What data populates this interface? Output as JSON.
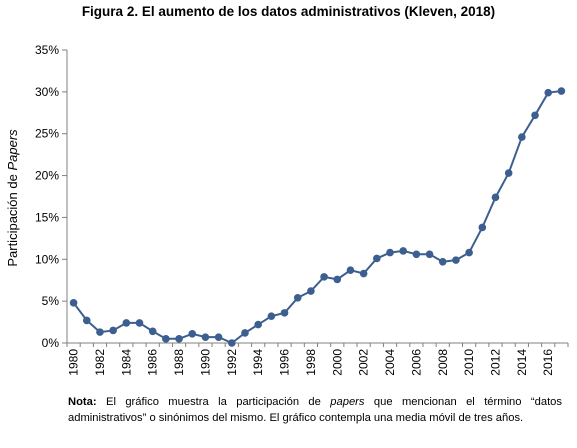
{
  "figure": {
    "title": "Figura 2. El aumento de los datos administrativos (Kleven, 2018)",
    "note_label": "Nota:",
    "note_text_before": " El gráfico muestra la participación de ",
    "note_italic": "papers",
    "note_text_after": " que mencionan el término “datos administrativos” o sinónimos del mismo. El gráfico contempla una media móvil de tres años."
  },
  "chart_data": {
    "type": "line",
    "title": "Figura 2. El aumento de los datos administrativos (Kleven, 2018)",
    "xlabel": "",
    "ylabel_prefix": "Participación de ",
    "ylabel_italic": "Papers",
    "ylim": [
      0,
      35
    ],
    "xlim": [
      1980,
      2017
    ],
    "y_ticks": [
      0,
      5,
      10,
      15,
      20,
      25,
      30,
      35
    ],
    "y_tick_labels": [
      "0%",
      "5%",
      "10%",
      "15%",
      "20%",
      "25%",
      "30%",
      "35%"
    ],
    "x_ticks": [
      1980,
      1982,
      1984,
      1986,
      1988,
      1990,
      1992,
      1994,
      1996,
      1998,
      2000,
      2002,
      2004,
      2006,
      2008,
      2010,
      2012,
      2014,
      2016
    ],
    "x_tick_labels": [
      "1980",
      "1982",
      "1984",
      "1986",
      "1988",
      "1990",
      "1992",
      "1994",
      "1996",
      "1998",
      "2000",
      "2002",
      "2004",
      "2006",
      "2008",
      "2010",
      "2012",
      "2014",
      "2016"
    ],
    "grid": false,
    "color": "#3c5f8f",
    "x": [
      1980,
      1981,
      1982,
      1983,
      1984,
      1985,
      1986,
      1987,
      1988,
      1989,
      1990,
      1991,
      1992,
      1993,
      1994,
      1995,
      1996,
      1997,
      1998,
      1999,
      2000,
      2001,
      2002,
      2003,
      2004,
      2005,
      2006,
      2007,
      2008,
      2009,
      2010,
      2011,
      2012,
      2013,
      2014,
      2015,
      2016,
      2017
    ],
    "values": [
      4.8,
      2.7,
      1.3,
      1.5,
      2.4,
      2.4,
      1.4,
      0.5,
      0.5,
      1.1,
      0.7,
      0.7,
      0.0,
      1.2,
      2.2,
      3.2,
      3.6,
      5.4,
      6.2,
      7.9,
      7.6,
      8.7,
      8.3,
      10.1,
      10.8,
      11.0,
      10.6,
      10.6,
      9.7,
      9.9,
      10.8,
      13.8,
      17.4,
      20.3,
      24.6,
      27.2,
      29.9,
      30.1
    ]
  }
}
